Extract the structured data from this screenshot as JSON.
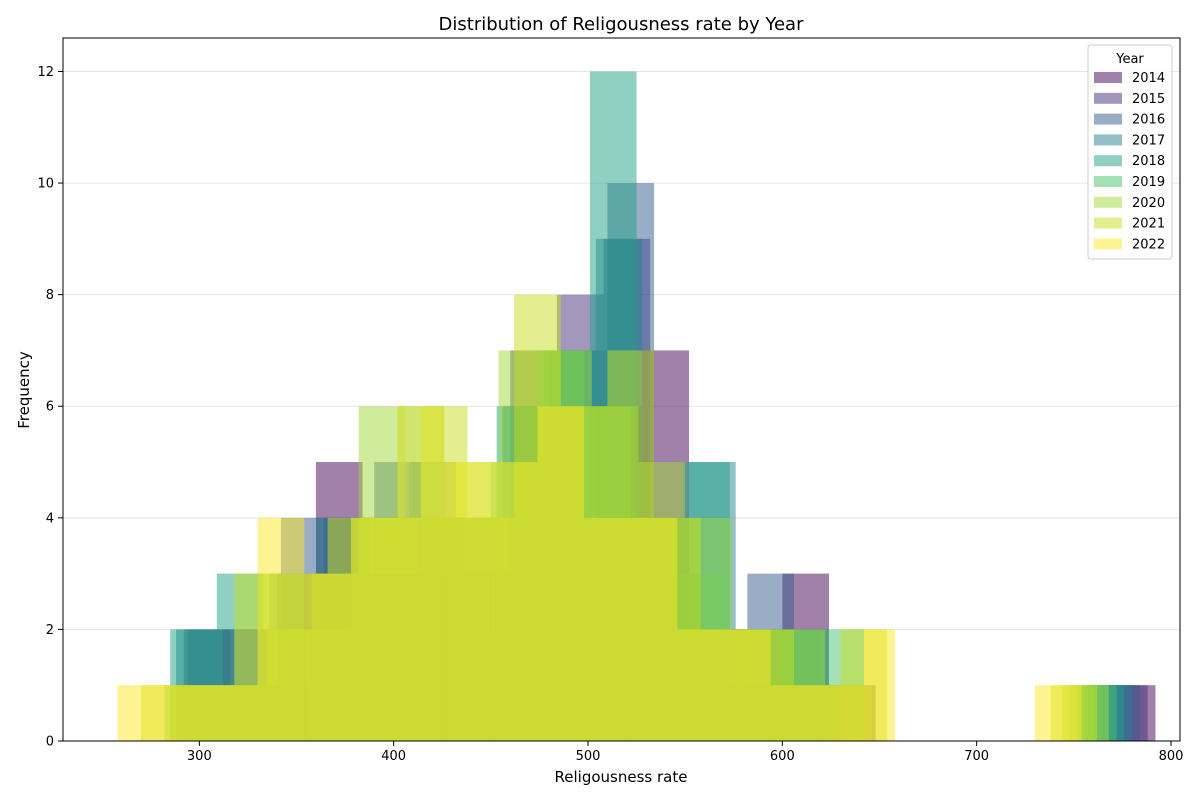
{
  "chart_data": {
    "type": "bar",
    "title": "Distribution of Religousness rate by Year",
    "xlabel": "Religousness rate",
    "ylabel": "Frequency",
    "xlim": [
      232,
      1005
    ],
    "ylim": [
      0,
      12.6
    ],
    "xticks": [
      300,
      400,
      500,
      600,
      700,
      800
    ],
    "yticks": [
      0,
      2,
      4,
      6,
      8,
      10,
      12
    ],
    "grid": "y",
    "legend_title": "Year",
    "legend_position": "upper right",
    "bar_opacity": 0.5,
    "series": [
      {
        "name": "2014",
        "color": "#440154",
        "bins": [
          [
            288,
            312,
            1
          ],
          [
            312,
            336,
            2
          ],
          [
            336,
            360,
            1
          ],
          [
            360,
            384,
            5
          ],
          [
            384,
            408,
            3
          ],
          [
            408,
            432,
            3
          ],
          [
            432,
            456,
            2
          ],
          [
            456,
            480,
            3
          ],
          [
            480,
            504,
            4
          ],
          [
            504,
            528,
            6
          ],
          [
            528,
            552,
            7
          ],
          [
            552,
            576,
            1
          ],
          [
            576,
            600,
            2
          ],
          [
            600,
            624,
            3
          ],
          [
            624,
            648,
            1
          ],
          [
            768,
            792,
            1
          ]
        ]
      },
      {
        "name": "2015",
        "color": "#46327e",
        "bins": [
          [
            292,
            316,
            2
          ],
          [
            316,
            340,
            1
          ],
          [
            340,
            364,
            3
          ],
          [
            364,
            388,
            4
          ],
          [
            388,
            412,
            3
          ],
          [
            412,
            436,
            4
          ],
          [
            436,
            460,
            3
          ],
          [
            460,
            484,
            7
          ],
          [
            484,
            508,
            8
          ],
          [
            508,
            532,
            9
          ],
          [
            532,
            556,
            3
          ],
          [
            556,
            580,
            2
          ],
          [
            580,
            604,
            1
          ],
          [
            604,
            628,
            1
          ],
          [
            764,
            788,
            1
          ]
        ]
      },
      {
        "name": "2016",
        "color": "#365c8d",
        "bins": [
          [
            294,
            318,
            2
          ],
          [
            318,
            342,
            1
          ],
          [
            342,
            366,
            4
          ],
          [
            366,
            390,
            3
          ],
          [
            390,
            414,
            5
          ],
          [
            414,
            438,
            4
          ],
          [
            438,
            462,
            4
          ],
          [
            462,
            486,
            6
          ],
          [
            486,
            510,
            7
          ],
          [
            510,
            534,
            10
          ],
          [
            534,
            558,
            3
          ],
          [
            558,
            582,
            2
          ],
          [
            582,
            606,
            3
          ],
          [
            606,
            630,
            1
          ],
          [
            760,
            784,
            1
          ]
        ]
      },
      {
        "name": "2017",
        "color": "#277f8e",
        "bins": [
          [
            288,
            312,
            2
          ],
          [
            312,
            336,
            1
          ],
          [
            336,
            360,
            3
          ],
          [
            360,
            384,
            4
          ],
          [
            384,
            408,
            4
          ],
          [
            408,
            432,
            5
          ],
          [
            432,
            456,
            4
          ],
          [
            456,
            480,
            6
          ],
          [
            480,
            504,
            7
          ],
          [
            504,
            528,
            9
          ],
          [
            528,
            552,
            4
          ],
          [
            552,
            576,
            5
          ],
          [
            576,
            600,
            1
          ],
          [
            600,
            624,
            2
          ],
          [
            756,
            780,
            1
          ]
        ]
      },
      {
        "name": "2018",
        "color": "#1fa187",
        "bins": [
          [
            285,
            309,
            2
          ],
          [
            309,
            333,
            3
          ],
          [
            333,
            357,
            2
          ],
          [
            357,
            381,
            3
          ],
          [
            381,
            405,
            4
          ],
          [
            405,
            429,
            4
          ],
          [
            429,
            453,
            3
          ],
          [
            453,
            477,
            6
          ],
          [
            477,
            501,
            7
          ],
          [
            501,
            525,
            12
          ],
          [
            525,
            549,
            4
          ],
          [
            549,
            573,
            5
          ],
          [
            573,
            597,
            2
          ],
          [
            597,
            621,
            2
          ],
          [
            752,
            776,
            1
          ]
        ]
      },
      {
        "name": "2019",
        "color": "#4ac16d",
        "bins": [
          [
            282,
            306,
            1
          ],
          [
            306,
            330,
            1
          ],
          [
            330,
            354,
            3
          ],
          [
            354,
            378,
            2
          ],
          [
            378,
            402,
            4
          ],
          [
            402,
            426,
            6
          ],
          [
            426,
            450,
            4
          ],
          [
            450,
            474,
            5
          ],
          [
            474,
            498,
            7
          ],
          [
            498,
            522,
            6
          ],
          [
            522,
            546,
            4
          ],
          [
            546,
            570,
            3
          ],
          [
            570,
            594,
            2
          ],
          [
            594,
            618,
            2
          ],
          [
            618,
            642,
            2
          ],
          [
            748,
            772,
            1
          ]
        ]
      },
      {
        "name": "2020",
        "color": "#a0da39",
        "bins": [
          [
            286,
            310,
            1
          ],
          [
            310,
            334,
            1
          ],
          [
            334,
            358,
            2
          ],
          [
            358,
            382,
            3
          ],
          [
            382,
            406,
            6
          ],
          [
            406,
            430,
            4
          ],
          [
            430,
            454,
            5
          ],
          [
            454,
            478,
            7
          ],
          [
            478,
            502,
            7
          ],
          [
            502,
            526,
            6
          ],
          [
            526,
            550,
            5
          ],
          [
            550,
            574,
            4
          ],
          [
            574,
            598,
            2
          ],
          [
            598,
            622,
            2
          ],
          [
            622,
            646,
            1
          ],
          [
            744,
            768,
            1
          ]
        ]
      },
      {
        "name": "2021",
        "color": "#c8e020",
        "bins": [
          [
            270,
            294,
            1
          ],
          [
            294,
            318,
            1
          ],
          [
            318,
            342,
            3
          ],
          [
            342,
            366,
            3
          ],
          [
            366,
            390,
            4
          ],
          [
            390,
            414,
            4
          ],
          [
            414,
            438,
            6
          ],
          [
            438,
            462,
            4
          ],
          [
            462,
            486,
            8
          ],
          [
            486,
            510,
            6
          ],
          [
            510,
            534,
            7
          ],
          [
            534,
            558,
            4
          ],
          [
            558,
            582,
            2
          ],
          [
            582,
            606,
            2
          ],
          [
            606,
            630,
            1
          ],
          [
            630,
            654,
            2
          ],
          [
            738,
            762,
            1
          ]
        ]
      },
      {
        "name": "2022",
        "color": "#fde725",
        "bins": [
          [
            258,
            282,
            1
          ],
          [
            282,
            306,
            1
          ],
          [
            306,
            330,
            1
          ],
          [
            330,
            354,
            4
          ],
          [
            354,
            378,
            3
          ],
          [
            378,
            402,
            4
          ],
          [
            402,
            426,
            6
          ],
          [
            426,
            450,
            5
          ],
          [
            450,
            474,
            5
          ],
          [
            474,
            498,
            6
          ],
          [
            498,
            522,
            4
          ],
          [
            522,
            546,
            4
          ],
          [
            546,
            570,
            2
          ],
          [
            570,
            594,
            2
          ],
          [
            594,
            618,
            1
          ],
          [
            618,
            642,
            1
          ],
          [
            642,
            658,
            2
          ],
          [
            730,
            754,
            1
          ]
        ]
      }
    ]
  }
}
